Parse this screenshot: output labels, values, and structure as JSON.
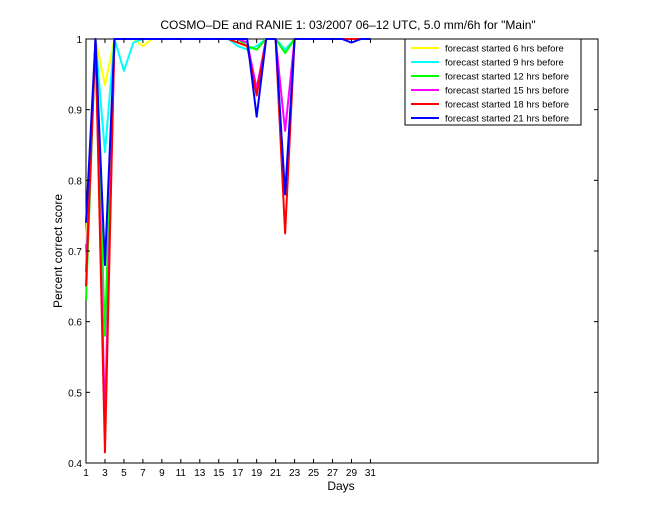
{
  "chart_data": {
    "type": "line",
    "title": "COSMO–DE and RANIE 1: 03/2007 06–12 UTC, 5.0 mm/6h for \"Main\"",
    "xlabel": "Days",
    "ylabel": "Percent correct score",
    "xlim": [
      1,
      55
    ],
    "ylim": [
      0.4,
      1.0
    ],
    "xticks": [
      1,
      3,
      5,
      7,
      9,
      11,
      13,
      15,
      17,
      19,
      21,
      23,
      25,
      27,
      29,
      31
    ],
    "yticks": [
      0.4,
      0.5,
      0.6,
      0.7,
      0.8,
      0.9,
      1.0
    ],
    "ytick_labels": [
      "0.4",
      "0.5",
      "0.6",
      "0.7",
      "0.8",
      "0.9",
      "1"
    ],
    "legend_position": "top-right",
    "x": [
      1,
      2,
      3,
      4,
      5,
      6,
      7,
      8,
      9,
      10,
      11,
      12,
      13,
      14,
      15,
      16,
      17,
      18,
      19,
      20,
      21,
      22,
      23,
      24,
      25,
      26,
      27,
      28,
      29,
      30,
      31
    ],
    "series": [
      {
        "name": "forecast started 6 hrs before",
        "color": "#ffff00",
        "values": [
          0.71,
          1.0,
          0.935,
          1.0,
          1.0,
          1.0,
          0.99,
          1.0,
          1.0,
          1.0,
          1.0,
          1.0,
          1.0,
          1.0,
          1.0,
          1.0,
          0.995,
          0.99,
          0.985,
          1.0,
          1.0,
          0.985,
          1.0,
          1.0,
          1.0,
          1.0,
          1.0,
          1.0,
          1.0,
          1.0,
          1.0
        ]
      },
      {
        "name": "forecast started 9 hrs before",
        "color": "#00ffff",
        "values": [
          0.67,
          1.0,
          0.84,
          1.0,
          0.955,
          0.995,
          1.0,
          1.0,
          1.0,
          1.0,
          1.0,
          1.0,
          1.0,
          1.0,
          1.0,
          1.0,
          0.99,
          0.985,
          0.99,
          1.0,
          1.0,
          0.985,
          1.0,
          1.0,
          1.0,
          1.0,
          1.0,
          1.0,
          1.0,
          1.0,
          1.0
        ]
      },
      {
        "name": "forecast started 12 hrs before",
        "color": "#00ff00",
        "values": [
          0.63,
          1.0,
          0.58,
          1.0,
          1.0,
          1.0,
          1.0,
          1.0,
          1.0,
          1.0,
          1.0,
          1.0,
          1.0,
          1.0,
          1.0,
          1.0,
          1.0,
          0.99,
          0.985,
          1.0,
          1.0,
          0.98,
          1.0,
          1.0,
          1.0,
          1.0,
          1.0,
          1.0,
          1.0,
          1.0,
          1.0
        ]
      },
      {
        "name": "forecast started 15 hrs before",
        "color": "#ff00ff",
        "values": [
          0.67,
          1.0,
          0.46,
          1.0,
          1.0,
          1.0,
          1.0,
          1.0,
          1.0,
          1.0,
          1.0,
          1.0,
          1.0,
          1.0,
          1.0,
          1.0,
          1.0,
          0.995,
          0.93,
          1.0,
          1.0,
          0.87,
          1.0,
          1.0,
          1.0,
          1.0,
          1.0,
          1.0,
          1.0,
          1.0,
          1.0
        ]
      },
      {
        "name": "forecast started 18 hrs before",
        "color": "#ff0000",
        "values": [
          0.65,
          1.0,
          0.415,
          1.0,
          1.0,
          1.0,
          1.0,
          1.0,
          1.0,
          1.0,
          1.0,
          1.0,
          1.0,
          1.0,
          1.0,
          1.0,
          0.995,
          0.99,
          0.92,
          1.0,
          1.0,
          0.725,
          1.0,
          1.0,
          1.0,
          1.0,
          1.0,
          1.0,
          1.0,
          1.0,
          1.0
        ]
      },
      {
        "name": "forecast started 21 hrs before",
        "color": "#0000ff",
        "values": [
          0.74,
          1.0,
          0.68,
          1.0,
          1.0,
          1.0,
          1.0,
          1.0,
          1.0,
          1.0,
          1.0,
          1.0,
          1.0,
          1.0,
          1.0,
          1.0,
          1.0,
          1.0,
          0.89,
          1.0,
          1.0,
          0.78,
          1.0,
          1.0,
          1.0,
          1.0,
          1.0,
          1.0,
          0.995,
          1.0,
          1.0
        ]
      }
    ]
  }
}
